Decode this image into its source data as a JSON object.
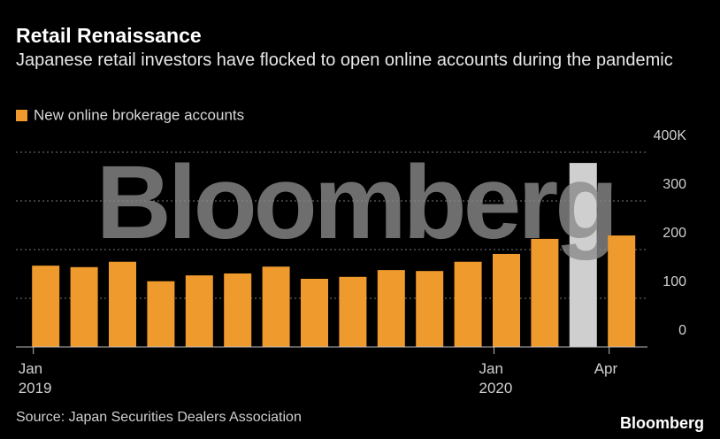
{
  "chart_data": {
    "type": "bar",
    "title": "Retail Renaissance",
    "subtitle": "Japanese retail investors have flocked to open online accounts during the pandemic",
    "categories": [
      "Jan\n2019",
      null,
      null,
      null,
      null,
      null,
      null,
      null,
      null,
      null,
      null,
      null,
      "Jan\n2020",
      null,
      null,
      "Apr"
    ],
    "series": [
      {
        "name": "New online brokerage accounts",
        "color": "#ef9a2d",
        "values": [
          167,
          164,
          175,
          135,
          147,
          151,
          165,
          140,
          144,
          158,
          156,
          175,
          191,
          222,
          378,
          229
        ]
      }
    ],
    "colors": [
      "#ef9a2d",
      "#ef9a2d",
      "#ef9a2d",
      "#ef9a2d",
      "#ef9a2d",
      "#ef9a2d",
      "#ef9a2d",
      "#ef9a2d",
      "#ef9a2d",
      "#ef9a2d",
      "#ef9a2d",
      "#ef9a2d",
      "#ef9a2d",
      "#ef9a2d",
      "#cfcfcf",
      "#ef9a2d"
    ],
    "ylim": [
      0,
      400
    ],
    "yticks": [
      0,
      100,
      200,
      300,
      {
        "value": 400,
        "label": "400K"
      }
    ],
    "grid": true,
    "source": "Source: Japan Securities Dealers Association",
    "watermark": "Bloomberg",
    "logo": "Bloomberg"
  }
}
